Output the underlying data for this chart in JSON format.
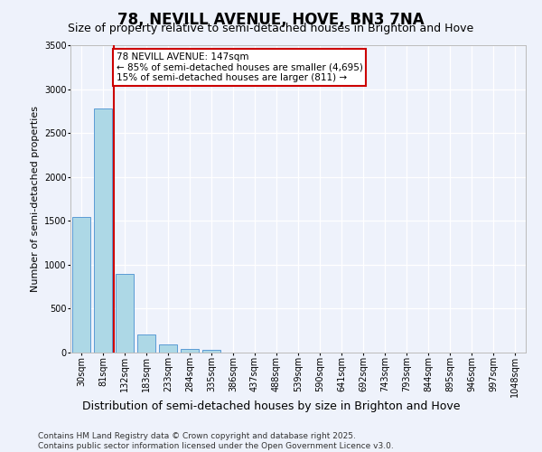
{
  "title_line1": "78, NEVILL AVENUE, HOVE, BN3 7NA",
  "title_line2": "Size of property relative to semi-detached houses in Brighton and Hove",
  "xlabel": "Distribution of semi-detached houses by size in Brighton and Hove",
  "ylabel": "Number of semi-detached properties",
  "categories": [
    "30sqm",
    "81sqm",
    "132sqm",
    "183sqm",
    "233sqm",
    "284sqm",
    "335sqm",
    "386sqm",
    "437sqm",
    "488sqm",
    "539sqm",
    "590sqm",
    "641sqm",
    "692sqm",
    "743sqm",
    "793sqm",
    "844sqm",
    "895sqm",
    "946sqm",
    "997sqm",
    "1048sqm"
  ],
  "values": [
    1540,
    2780,
    900,
    210,
    95,
    45,
    30,
    0,
    0,
    0,
    0,
    0,
    0,
    0,
    0,
    0,
    0,
    0,
    0,
    0,
    0
  ],
  "bar_color": "#add8e6",
  "bar_edge_color": "#5b9bd5",
  "vline_pos": 1.5,
  "vline_color": "#cc0000",
  "vline_label_line1": "78 NEVILL AVENUE: 147sqm",
  "vline_label_line2": "← 85% of semi-detached houses are smaller (4,695)",
  "vline_label_line3": "15% of semi-detached houses are larger (811) →",
  "annotation_box_color": "#cc0000",
  "ylim": [
    0,
    3500
  ],
  "yticks": [
    0,
    500,
    1000,
    1500,
    2000,
    2500,
    3000,
    3500
  ],
  "background_color": "#eef2fb",
  "grid_color": "#ffffff",
  "footer_line1": "Contains HM Land Registry data © Crown copyright and database right 2025.",
  "footer_line2": "Contains public sector information licensed under the Open Government Licence v3.0.",
  "title_fontsize": 12,
  "subtitle_fontsize": 9,
  "xlabel_fontsize": 9,
  "ylabel_fontsize": 8,
  "tick_fontsize": 7,
  "footer_fontsize": 6.5,
  "annot_fontsize": 7.5
}
